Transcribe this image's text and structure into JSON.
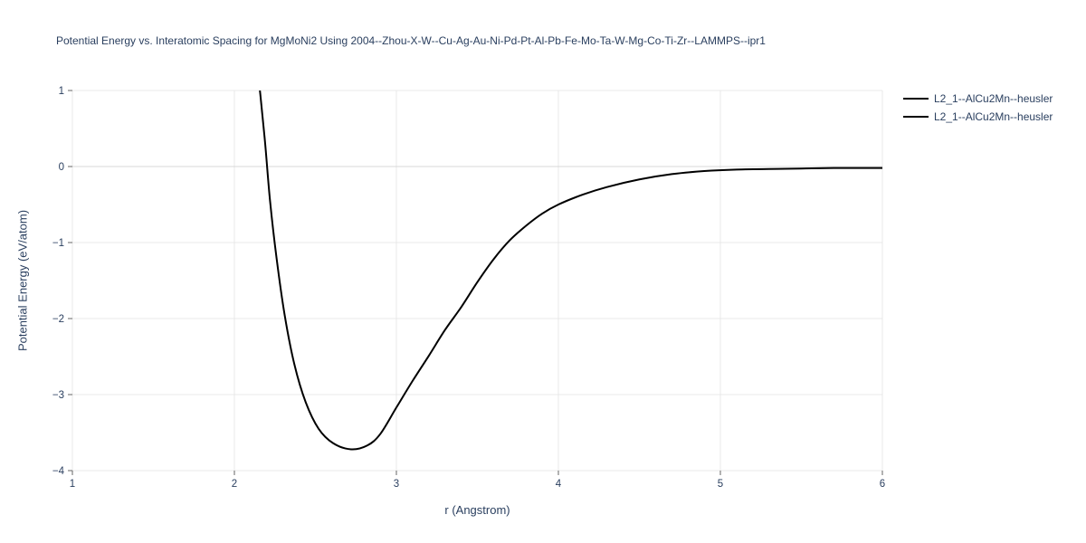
{
  "page": {
    "background": "#ffffff"
  },
  "chart_data": {
    "type": "line",
    "title": "Potential Energy vs. Interatomic Spacing for MgMoNi2 Using 2004--Zhou-X-W--Cu-Ag-Au-Ni-Pd-Pt-Al-Pb-Fe-Mo-Ta-W-Mg-Co-Ti-Zr--LAMMPS--ipr1",
    "xlabel": "r (Angstrom)",
    "ylabel": "Potential Energy (eV/atom)",
    "xlim": [
      1,
      6
    ],
    "ylim": [
      -4,
      1
    ],
    "xticks": [
      1,
      2,
      3,
      4,
      5,
      6
    ],
    "yticks": [
      -4,
      -3,
      -2,
      -1,
      0,
      1
    ],
    "grid": true,
    "grid_color": "#e8e8e8",
    "zeroline_color": "#d8d8d8",
    "tick_color": "#666666",
    "text_color": "#2a3f5f",
    "line_color": "#000000",
    "legend_position": "top-right-outside",
    "legend": [
      {
        "label": "L2_1--AlCu2Mn--heusler",
        "color": "#000000"
      },
      {
        "label": "L2_1--AlCu2Mn--heusler",
        "color": "#000000"
      }
    ],
    "series": [
      {
        "name": "L2_1--AlCu2Mn--heusler",
        "color": "#000000",
        "points": [
          [
            2.14,
            1.35
          ],
          [
            2.16,
            0.95
          ],
          [
            2.19,
            0.3
          ],
          [
            2.22,
            -0.45
          ],
          [
            2.26,
            -1.2
          ],
          [
            2.31,
            -1.95
          ],
          [
            2.37,
            -2.6
          ],
          [
            2.44,
            -3.1
          ],
          [
            2.52,
            -3.45
          ],
          [
            2.61,
            -3.64
          ],
          [
            2.72,
            -3.72
          ],
          [
            2.82,
            -3.67
          ],
          [
            2.9,
            -3.52
          ],
          [
            3.0,
            -3.17
          ],
          [
            3.1,
            -2.82
          ],
          [
            3.2,
            -2.49
          ],
          [
            3.3,
            -2.15
          ],
          [
            3.4,
            -1.85
          ],
          [
            3.5,
            -1.52
          ],
          [
            3.6,
            -1.22
          ],
          [
            3.7,
            -0.97
          ],
          [
            3.8,
            -0.78
          ],
          [
            3.9,
            -0.62
          ],
          [
            4.0,
            -0.5
          ],
          [
            4.15,
            -0.37
          ],
          [
            4.3,
            -0.27
          ],
          [
            4.5,
            -0.17
          ],
          [
            4.7,
            -0.1
          ],
          [
            4.9,
            -0.06
          ],
          [
            5.1,
            -0.04
          ],
          [
            5.4,
            -0.03
          ],
          [
            5.7,
            -0.02
          ],
          [
            6.0,
            -0.02
          ]
        ]
      }
    ]
  }
}
